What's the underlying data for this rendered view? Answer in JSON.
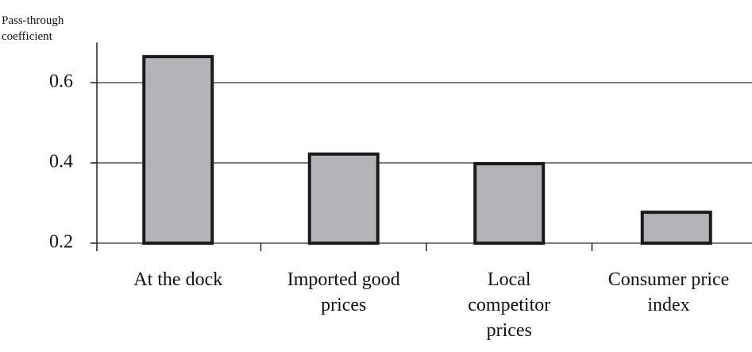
{
  "chart_data": {
    "type": "bar",
    "y_label": "Pass-through coefficient",
    "categories": [
      "At the dock",
      "Imported good prices",
      "Local competitor prices",
      "Consumer price index"
    ],
    "values": [
      0.665,
      0.422,
      0.398,
      0.277
    ],
    "color": "#b4b4b8",
    "ylim": [
      0.2,
      0.7
    ],
    "yticks": [
      0.2,
      0.4,
      0.6
    ],
    "grid": true
  }
}
